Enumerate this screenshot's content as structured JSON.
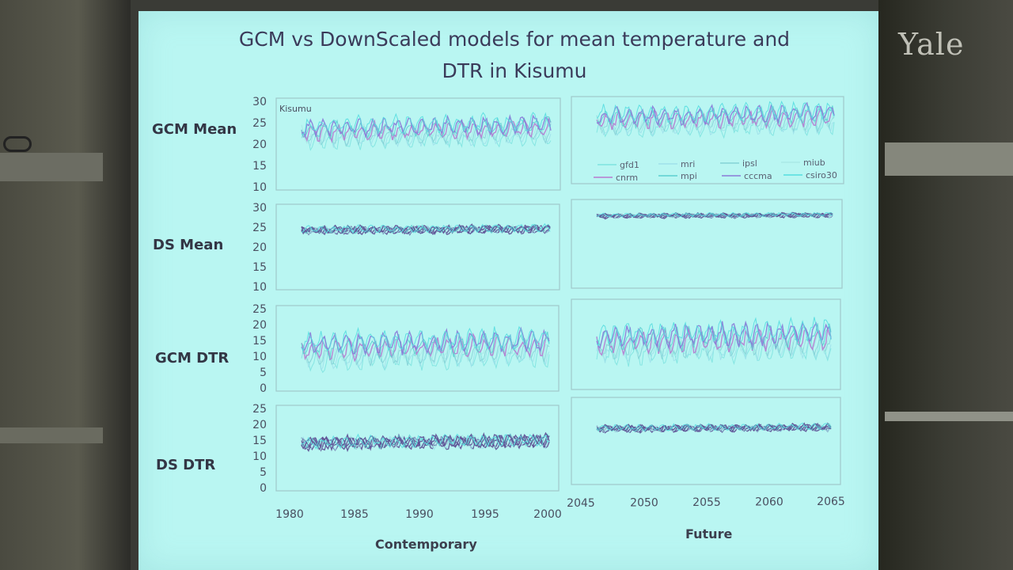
{
  "slide": {
    "title_line1": "GCM vs DownScaled models for mean temperature and",
    "title_line2": "DTR in Kisumu",
    "watermark": "Yale",
    "row_labels": [
      "GCM Mean",
      "DS Mean",
      "GCM DTR",
      "DS DTR"
    ],
    "xlabel_left": "Contemporary",
    "xlabel_right": "Future"
  },
  "chart_data": {
    "type": "line",
    "title": "GCM vs DownScaled models for mean temperature and DTR in Kisumu",
    "panel_annotation": "Kisumu",
    "legend": {
      "position": "inside-bottom of top-right panel",
      "entries": [
        "gfd1",
        "mri",
        "ipsl",
        "miub",
        "cnrm",
        "mpi",
        "cccma",
        "csiro30"
      ]
    },
    "series_colors": [
      "#7fe3e0",
      "#9fe0ea",
      "#86d2d6",
      "#a9e8e6",
      "#b77ad0",
      "#5ccfd0",
      "#8a7ad8",
      "#55dde0"
    ],
    "x_ticks_contemporary": [
      "1980",
      "1985",
      "1990",
      "1995",
      "2000"
    ],
    "x_ticks_future": [
      "2045",
      "2050",
      "2055",
      "2060",
      "2065"
    ],
    "xlim_contemporary": [
      1980,
      2000
    ],
    "xlim_future": [
      2045,
      2065
    ],
    "panels": [
      {
        "row": "GCM Mean",
        "period": "Contemporary",
        "y_ticks": [
          "30",
          "25",
          "20",
          "15",
          "10"
        ],
        "ylim": [
          10,
          30
        ],
        "mean": 22.5,
        "spread": 1.8,
        "amp": 1.5
      },
      {
        "row": "GCM Mean",
        "period": "Future",
        "y_ticks": [],
        "ylim": [
          10,
          30
        ],
        "mean": 24.5,
        "spread": 1.9,
        "amp": 1.6
      },
      {
        "row": "DS Mean",
        "period": "Contemporary",
        "y_ticks": [
          "30",
          "25",
          "20",
          "15",
          "10"
        ],
        "ylim": [
          10,
          30
        ],
        "mean": 24.2,
        "spread": 0.2,
        "amp": 0.7
      },
      {
        "row": "DS Mean",
        "period": "Future",
        "y_ticks": [],
        "ylim": [
          10,
          30
        ],
        "mean": 26.8,
        "spread": 0.2,
        "amp": 0.35
      },
      {
        "row": "GCM DTR",
        "period": "Contemporary",
        "y_ticks": [
          "25",
          "20",
          "15",
          "10",
          "5",
          "0"
        ],
        "ylim": [
          0,
          25
        ],
        "mean": 11.5,
        "spread": 3.0,
        "amp": 2.5
      },
      {
        "row": "GCM DTR",
        "period": "Future",
        "y_ticks": [],
        "ylim": [
          0,
          25
        ],
        "mean": 12.5,
        "spread": 3.0,
        "amp": 2.5
      },
      {
        "row": "DS DTR",
        "period": "Contemporary",
        "y_ticks": [
          "25",
          "20",
          "15",
          "10",
          "5",
          "0"
        ],
        "ylim": [
          0,
          25
        ],
        "mean": 14.0,
        "spread": 0.4,
        "amp": 1.4
      },
      {
        "row": "DS DTR",
        "period": "Future",
        "y_ticks": [],
        "ylim": [
          0,
          25
        ],
        "mean": 16.3,
        "spread": 0.3,
        "amp": 0.7
      }
    ]
  }
}
